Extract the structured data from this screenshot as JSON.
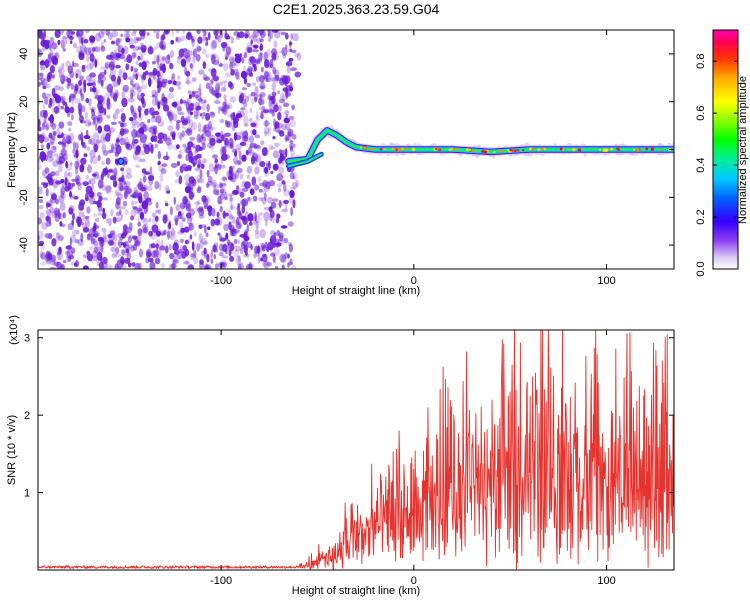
{
  "title": "C2E1.2025.363.23.59.G04",
  "chart_data": [
    {
      "type": "heatmap",
      "id": "spectrogram",
      "xlabel": "Height of straight line (km)",
      "ylabel": "Frequency (Hz)",
      "xlim": [
        -195,
        135
      ],
      "ylim": [
        -50,
        50
      ],
      "xticks": [
        -100,
        0,
        100
      ],
      "xtick_labels": [
        "-100",
        "0",
        "100"
      ],
      "yticks": [
        -40,
        -20,
        0,
        20,
        40
      ],
      "ytick_labels": [
        "-40",
        "-20",
        "0",
        "20",
        "40"
      ],
      "noise_region_x": [
        -195,
        -62
      ],
      "noise_color": "#6a1bd6",
      "signal_trace": {
        "x": [
          -65,
          -55,
          -50,
          -45,
          -40,
          -35,
          -30,
          -20,
          -10,
          0,
          20,
          40,
          60,
          80,
          100,
          120,
          135
        ],
        "y": [
          -5,
          -4,
          4,
          8,
          6,
          3,
          1,
          0,
          0,
          0,
          0,
          -1,
          0,
          0,
          0,
          0,
          0
        ]
      },
      "colorbar": {
        "label": "Normalized spectral amplitude",
        "range": [
          0.0,
          0.92
        ],
        "ticks": [
          0.0,
          0.2,
          0.4,
          0.6,
          0.8
        ],
        "tick_labels": [
          "0.0",
          "0.2",
          "0.4",
          "0.6",
          "0.8"
        ]
      }
    },
    {
      "type": "line",
      "id": "snr",
      "xlabel": "Height of straight line (km)",
      "ylabel": "SNR (10 * v/v)",
      "scale_label": "(x10⁴)",
      "xlim": [
        -195,
        135
      ],
      "ylim": [
        0,
        3.1
      ],
      "xticks": [
        -100,
        0,
        100
      ],
      "xtick_labels": [
        "-100",
        "0",
        "100"
      ],
      "yticks": [
        1,
        2,
        3
      ],
      "ytick_labels": [
        "1",
        "2",
        "3"
      ],
      "line_color": "#e8322e",
      "envelope": {
        "x": [
          -195,
          -60,
          -45,
          -35,
          -25,
          -15,
          -5,
          5,
          15,
          35,
          60,
          100,
          135
        ],
        "y": [
          0.06,
          0.06,
          0.35,
          0.75,
          1.15,
          1.45,
          1.55,
          1.8,
          2.1,
          2.55,
          2.6,
          2.55,
          2.5
        ]
      }
    }
  ]
}
